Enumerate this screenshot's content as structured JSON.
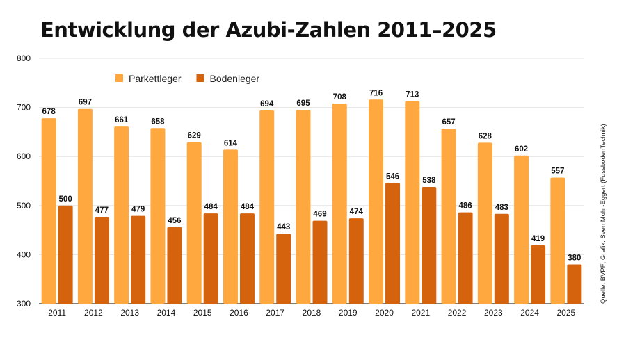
{
  "chart_data": {
    "type": "bar",
    "title": "Entwicklung der Azubi-Zahlen 2011–2025",
    "source": "Quelle: BVPF; Grafik: Sven Mohr-Eggert (FussbodenTechnik)",
    "categories": [
      "2011",
      "2012",
      "2013",
      "2014",
      "2015",
      "2016",
      "2017",
      "2018",
      "2019",
      "2020",
      "2021",
      "2022",
      "2023",
      "2024",
      "2025"
    ],
    "series": [
      {
        "name": "Parkettleger",
        "color": "#FFA83F",
        "values": [
          678,
          697,
          661,
          658,
          629,
          614,
          694,
          695,
          708,
          716,
          713,
          657,
          628,
          602,
          557
        ]
      },
      {
        "name": "Bodenleger",
        "color": "#D5620C",
        "values": [
          500,
          477,
          479,
          456,
          484,
          484,
          443,
          469,
          474,
          546,
          538,
          486,
          483,
          419,
          380
        ]
      }
    ],
    "ylim": [
      300,
      800
    ],
    "yticks": [
      300,
      400,
      500,
      600,
      700,
      800
    ],
    "grid": true,
    "legend": "top-left",
    "data_labels": true
  }
}
